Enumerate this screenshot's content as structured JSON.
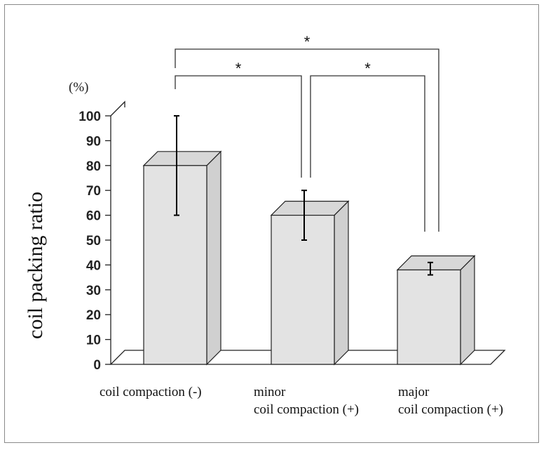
{
  "chart_data": {
    "type": "bar",
    "categories": [
      [
        "coil compaction (-)"
      ],
      [
        "minor",
        "coil compaction (+)"
      ],
      [
        "major",
        "coil compaction (+)"
      ]
    ],
    "values": [
      80,
      60,
      38
    ],
    "errors": [
      [
        60,
        100
      ],
      [
        50,
        70
      ],
      [
        36,
        41
      ]
    ],
    "ylabel": "coil packing ratio",
    "yunit": "(%)",
    "ylim": [
      0,
      100
    ],
    "yticks": [
      0,
      10,
      20,
      30,
      40,
      50,
      60,
      70,
      80,
      90,
      100
    ],
    "grid": false,
    "style": "3d-bar",
    "bar_color": "#e3e3e3",
    "significance": [
      {
        "pair": [
          0,
          1
        ],
        "label": "*"
      },
      {
        "pair": [
          1,
          2
        ],
        "label": "*"
      },
      {
        "pair": [
          0,
          2
        ],
        "label": "*"
      }
    ]
  }
}
